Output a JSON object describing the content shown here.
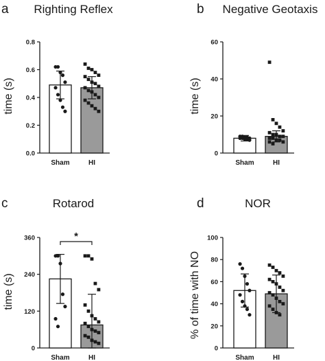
{
  "chart_data": [
    {
      "panel": "a",
      "type": "bar",
      "title": "Righting Reflex",
      "ylabel": "time (s)",
      "ylim": [
        0,
        0.8
      ],
      "yticks": [
        "0.0",
        "0.2",
        "0.4",
        "0.6",
        "0.8"
      ],
      "categories": [
        "Sham",
        "HI"
      ],
      "values": [
        0.49,
        0.47
      ],
      "errors": [
        0.1,
        0.08
      ],
      "points": [
        [
          0.62,
          0.62,
          0.58,
          0.56,
          0.51,
          0.47,
          0.42,
          0.38,
          0.33,
          0.3
        ],
        [
          0.64,
          0.61,
          0.6,
          0.58,
          0.56,
          0.55,
          0.53,
          0.51,
          0.5,
          0.48,
          0.47,
          0.45,
          0.44,
          0.42,
          0.4,
          0.38,
          0.36,
          0.34,
          0.32,
          0.3
        ]
      ],
      "fills": [
        "#ffffff",
        "#9a9a9a"
      ]
    },
    {
      "panel": "b",
      "type": "bar",
      "title": "Negative Geotaxis",
      "ylabel": "time (s)",
      "ylim": [
        0,
        60
      ],
      "yticks": [
        "0",
        "20",
        "40",
        "60"
      ],
      "categories": [
        "Sham",
        "HI"
      ],
      "values": [
        8,
        9
      ],
      "errors": [
        1.5,
        3
      ],
      "points": [
        [
          9,
          9,
          8.5,
          8.5,
          8,
          8,
          8,
          7.5,
          7.5,
          7
        ],
        [
          49,
          18,
          16,
          14,
          12,
          11,
          10,
          10,
          9,
          9,
          8,
          8,
          7,
          7,
          6,
          6,
          5
        ]
      ],
      "fills": [
        "#ffffff",
        "#9a9a9a"
      ]
    },
    {
      "panel": "c",
      "type": "bar",
      "title": "Rotarod",
      "ylabel": "time (s)",
      "ylim": [
        0,
        360
      ],
      "yticks": [
        "0",
        "120",
        "240",
        "360"
      ],
      "categories": [
        "Sham",
        "HI"
      ],
      "values": [
        225,
        75
      ],
      "errors": [
        80,
        100
      ],
      "points": [
        [
          300,
          300,
          275,
          175,
          135,
          95,
          70
        ],
        [
          300,
          300,
          290,
          210,
          190,
          140,
          120,
          105,
          95,
          85,
          80,
          70,
          60,
          55,
          50,
          40,
          35,
          25,
          20,
          15
        ]
      ],
      "fills": [
        "#ffffff",
        "#9a9a9a"
      ],
      "significance": "*"
    },
    {
      "panel": "d",
      "type": "bar",
      "title": "NOR",
      "ylabel": "% of time with NO",
      "ylim": [
        0,
        100
      ],
      "yticks": [
        "0",
        "20",
        "40",
        "60",
        "80",
        "100"
      ],
      "categories": [
        "Sham",
        "HI"
      ],
      "values": [
        52,
        49
      ],
      "errors": [
        15,
        17
      ],
      "points": [
        [
          76,
          72,
          65,
          58,
          52,
          48,
          42,
          38,
          35,
          30
        ],
        [
          75,
          73,
          70,
          68,
          65,
          62,
          60,
          58,
          55,
          52,
          50,
          48,
          45,
          42,
          40,
          38,
          35,
          32,
          30
        ]
      ],
      "fills": [
        "#ffffff",
        "#9a9a9a"
      ]
    }
  ]
}
